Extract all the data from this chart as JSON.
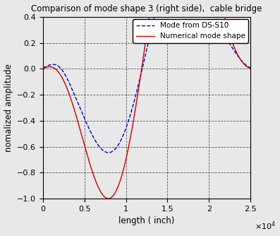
{
  "title": "Comparison of mode shape 3 (right side),  cable bridge",
  "xlabel": "length ( inch)",
  "ylabel": "nomalized amplitude",
  "xlim": [
    0,
    25000
  ],
  "ylim": [
    -1,
    0.4
  ],
  "xticks": [
    0,
    5000,
    10000,
    15000,
    20000,
    25000
  ],
  "xtick_labels": [
    "0",
    "0.5",
    "1",
    "1.5",
    "2",
    "2.5"
  ],
  "yticks": [
    -1,
    -0.8,
    -0.6,
    -0.4,
    -0.2,
    0,
    0.2,
    0.4
  ],
  "legend": [
    "Mode from DS-S10",
    "Numerical mode shape"
  ],
  "numerical_color": "#cc0000",
  "ds_color": "#0000cc",
  "background_color": "#f0f0f0",
  "grid_color": "#555555"
}
